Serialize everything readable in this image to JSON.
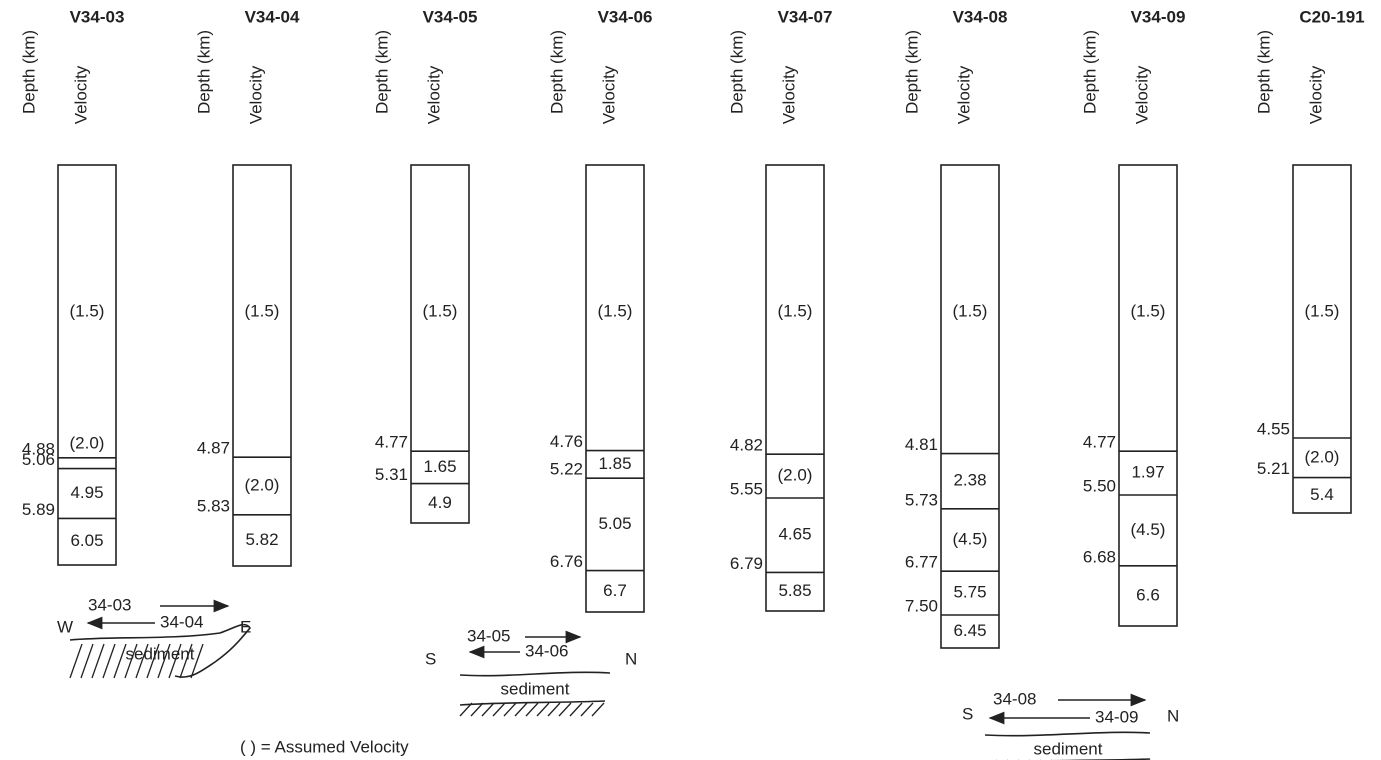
{
  "columns": [
    {
      "title": "V34-03",
      "depth_label": "Depth (km)",
      "velocity_label": "Velocity",
      "velocities": [
        "(1.5)",
        "(2.0)",
        "4.95",
        "6.05"
      ],
      "depths": [
        "4.88",
        "5.06",
        "5.89"
      ]
    },
    {
      "title": "V34-04",
      "depth_label": "Depth (km)",
      "velocity_label": "Velocity",
      "velocities": [
        "(1.5)",
        "(2.0)",
        "5.82"
      ],
      "depths": [
        "4.87",
        "5.83"
      ]
    },
    {
      "title": "V34-05",
      "depth_label": "Depth (km)",
      "velocity_label": "Velocity",
      "velocities": [
        "(1.5)",
        "1.65",
        "4.9"
      ],
      "depths": [
        "4.77",
        "5.31"
      ]
    },
    {
      "title": "V34-06",
      "depth_label": "Depth (km)",
      "velocity_label": "Velocity",
      "velocities": [
        "(1.5)",
        "1.85",
        "5.05",
        "6.7"
      ],
      "depths": [
        "4.76",
        "5.22",
        "6.76"
      ]
    },
    {
      "title": "V34-07",
      "depth_label": "Depth (km)",
      "velocity_label": "Velocity",
      "velocities": [
        "(1.5)",
        "(2.0)",
        "4.65",
        "5.85"
      ],
      "depths": [
        "4.82",
        "5.55",
        "6.79"
      ]
    },
    {
      "title": "V34-08",
      "depth_label": "Depth (km)",
      "velocity_label": "Velocity",
      "velocities": [
        "(1.5)",
        "2.38",
        "(4.5)",
        "5.75",
        "6.45"
      ],
      "depths": [
        "4.81",
        "5.73",
        "6.77",
        "7.50"
      ]
    },
    {
      "title": "V34-09",
      "depth_label": "Depth (km)",
      "velocity_label": "Velocity",
      "velocities": [
        "(1.5)",
        "1.97",
        "(4.5)",
        "6.6"
      ],
      "depths": [
        "4.77",
        "5.50",
        "6.68"
      ]
    },
    {
      "title": "C20-191",
      "depth_label": "Depth (km)",
      "velocity_label": "Velocity",
      "velocities": [
        "(1.5)",
        "(2.0)",
        "5.4"
      ],
      "depths": [
        "4.55",
        "5.21"
      ]
    }
  ],
  "sketches": [
    {
      "right_arrow": "34-03",
      "left_arrow": "34-04",
      "left_end": "W",
      "right_end": "E",
      "ground": "sediment"
    },
    {
      "right_arrow": "34-05",
      "left_arrow": "34-06",
      "left_end": "S",
      "right_end": "N",
      "ground": "sediment"
    },
    {
      "right_arrow": "34-08",
      "left_arrow": "34-09",
      "left_end": "S",
      "right_end": "N",
      "ground": "sediment"
    }
  ],
  "footnote": "( ) = Assumed Velocity"
}
